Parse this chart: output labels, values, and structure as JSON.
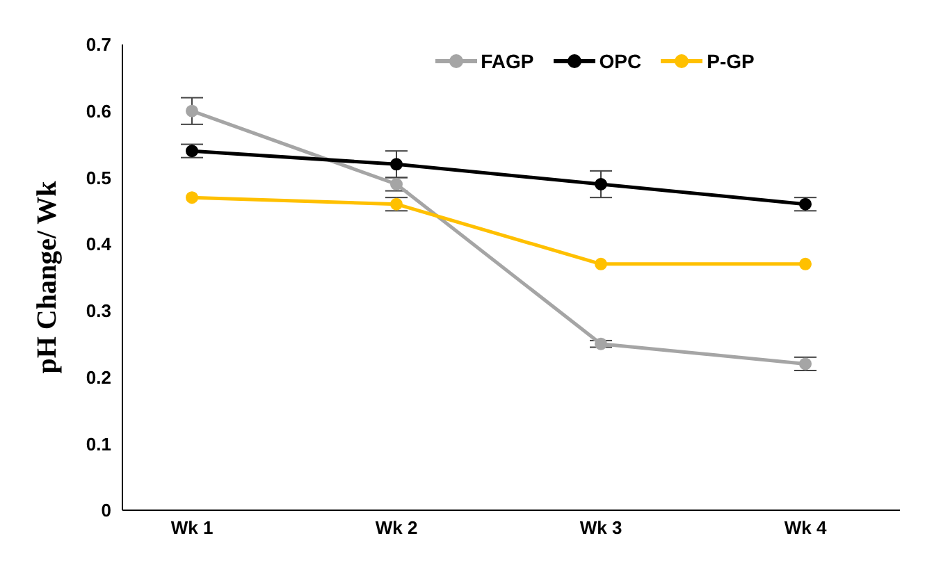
{
  "chart_data": {
    "type": "line",
    "ylabel": "pH Change/ Wk",
    "categories": [
      "Wk 1",
      "Wk 2",
      "Wk 3",
      "Wk 4"
    ],
    "series": [
      {
        "name": "FAGP",
        "color": "#a5a5a5",
        "values": [
          0.6,
          0.49,
          0.25,
          0.22
        ],
        "errors": [
          0.02,
          0.01,
          0.005,
          0.01
        ]
      },
      {
        "name": "OPC",
        "color": "#000000",
        "values": [
          0.54,
          0.52,
          0.49,
          0.46
        ],
        "errors": [
          0.01,
          0.02,
          0.02,
          0.01
        ]
      },
      {
        "name": "P-GP",
        "color": "#ffc000",
        "values": [
          0.47,
          0.46,
          0.37,
          0.37
        ],
        "errors": [
          null,
          0.01,
          null,
          null
        ]
      }
    ],
    "ylim": [
      0,
      0.7
    ],
    "yticks": [
      0,
      0.1,
      0.2,
      0.3,
      0.4,
      0.5,
      0.6,
      0.7
    ],
    "grid": false,
    "legend": "top",
    "marker": "circle",
    "line_style": "solid"
  }
}
